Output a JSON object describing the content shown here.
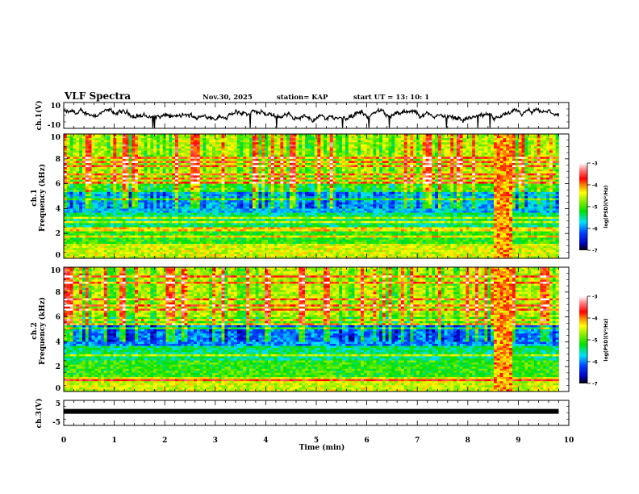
{
  "header": {
    "title": "VLF Spectra",
    "date": "Nov.30, 2025",
    "station": "station= KAP",
    "start_ut": "start  UT  =   13: 10: 1"
  },
  "chart_data": [
    {
      "type": "line",
      "name": "ch1-waveform",
      "ylabel": "ch.1(V)",
      "ylim": [
        -10,
        10
      ],
      "yticks": [
        "10",
        "-10"
      ],
      "xlim": [
        0,
        10
      ],
      "description": "noisy voltage trace, mostly between -5 and 5 V with occasional spikes to about -10"
    },
    {
      "type": "heatmap",
      "name": "ch1-spectrogram",
      "ylabel_line1": "ch.1",
      "ylabel_line2": "Frequency  (kHz)",
      "ylim": [
        0,
        10
      ],
      "yticks": [
        "0",
        "2",
        "4",
        "6",
        "8",
        "10"
      ],
      "xlim": [
        0,
        10
      ],
      "data_end_min": 9.8,
      "burst_interval_min": [
        8.5,
        8.9
      ],
      "colorbar": {
        "label": "log(PSD)(V²/Hz)",
        "range": [
          -7,
          -3
        ],
        "ticks": [
          "-3",
          "-4",
          "-5",
          "-6",
          "-7"
        ],
        "colormap": [
          "#000000",
          "#0000ff",
          "#00ffff",
          "#00ff00",
          "#ffff00",
          "#ff0000",
          "#ffffff"
        ]
      }
    },
    {
      "type": "heatmap",
      "name": "ch2-spectrogram",
      "ylabel_line1": "ch.2",
      "ylabel_line2": "Frequency  (kHz)",
      "ylim": [
        0,
        10
      ],
      "yticks": [
        "0",
        "2",
        "4",
        "6",
        "8",
        "10"
      ],
      "xlim": [
        0,
        10
      ],
      "data_end_min": 9.8,
      "burst_interval_min": [
        8.5,
        8.9
      ],
      "colorbar": {
        "label": "log(PSD)(V²/Hz)",
        "range": [
          -7,
          -3
        ],
        "ticks": [
          "-3",
          "-4",
          "-5",
          "-6",
          "-7"
        ],
        "colormap": [
          "#000000",
          "#0000ff",
          "#00ffff",
          "#00ff00",
          "#ffff00",
          "#ff0000",
          "#ffffff"
        ]
      }
    },
    {
      "type": "line",
      "name": "ch3-waveform",
      "ylabel": "ch.3(V)",
      "ylim": [
        -5,
        5
      ],
      "yticks": [
        "5",
        "-5"
      ],
      "xlim": [
        0,
        10
      ],
      "constant_level_v": 0.6,
      "description": "thick flat trace near 0.5 V"
    }
  ],
  "xaxis": {
    "label": "Time  (min)",
    "ticks": [
      "0",
      "1",
      "2",
      "3",
      "4",
      "5",
      "6",
      "7",
      "8",
      "9",
      "10"
    ],
    "range": [
      0,
      10
    ]
  }
}
